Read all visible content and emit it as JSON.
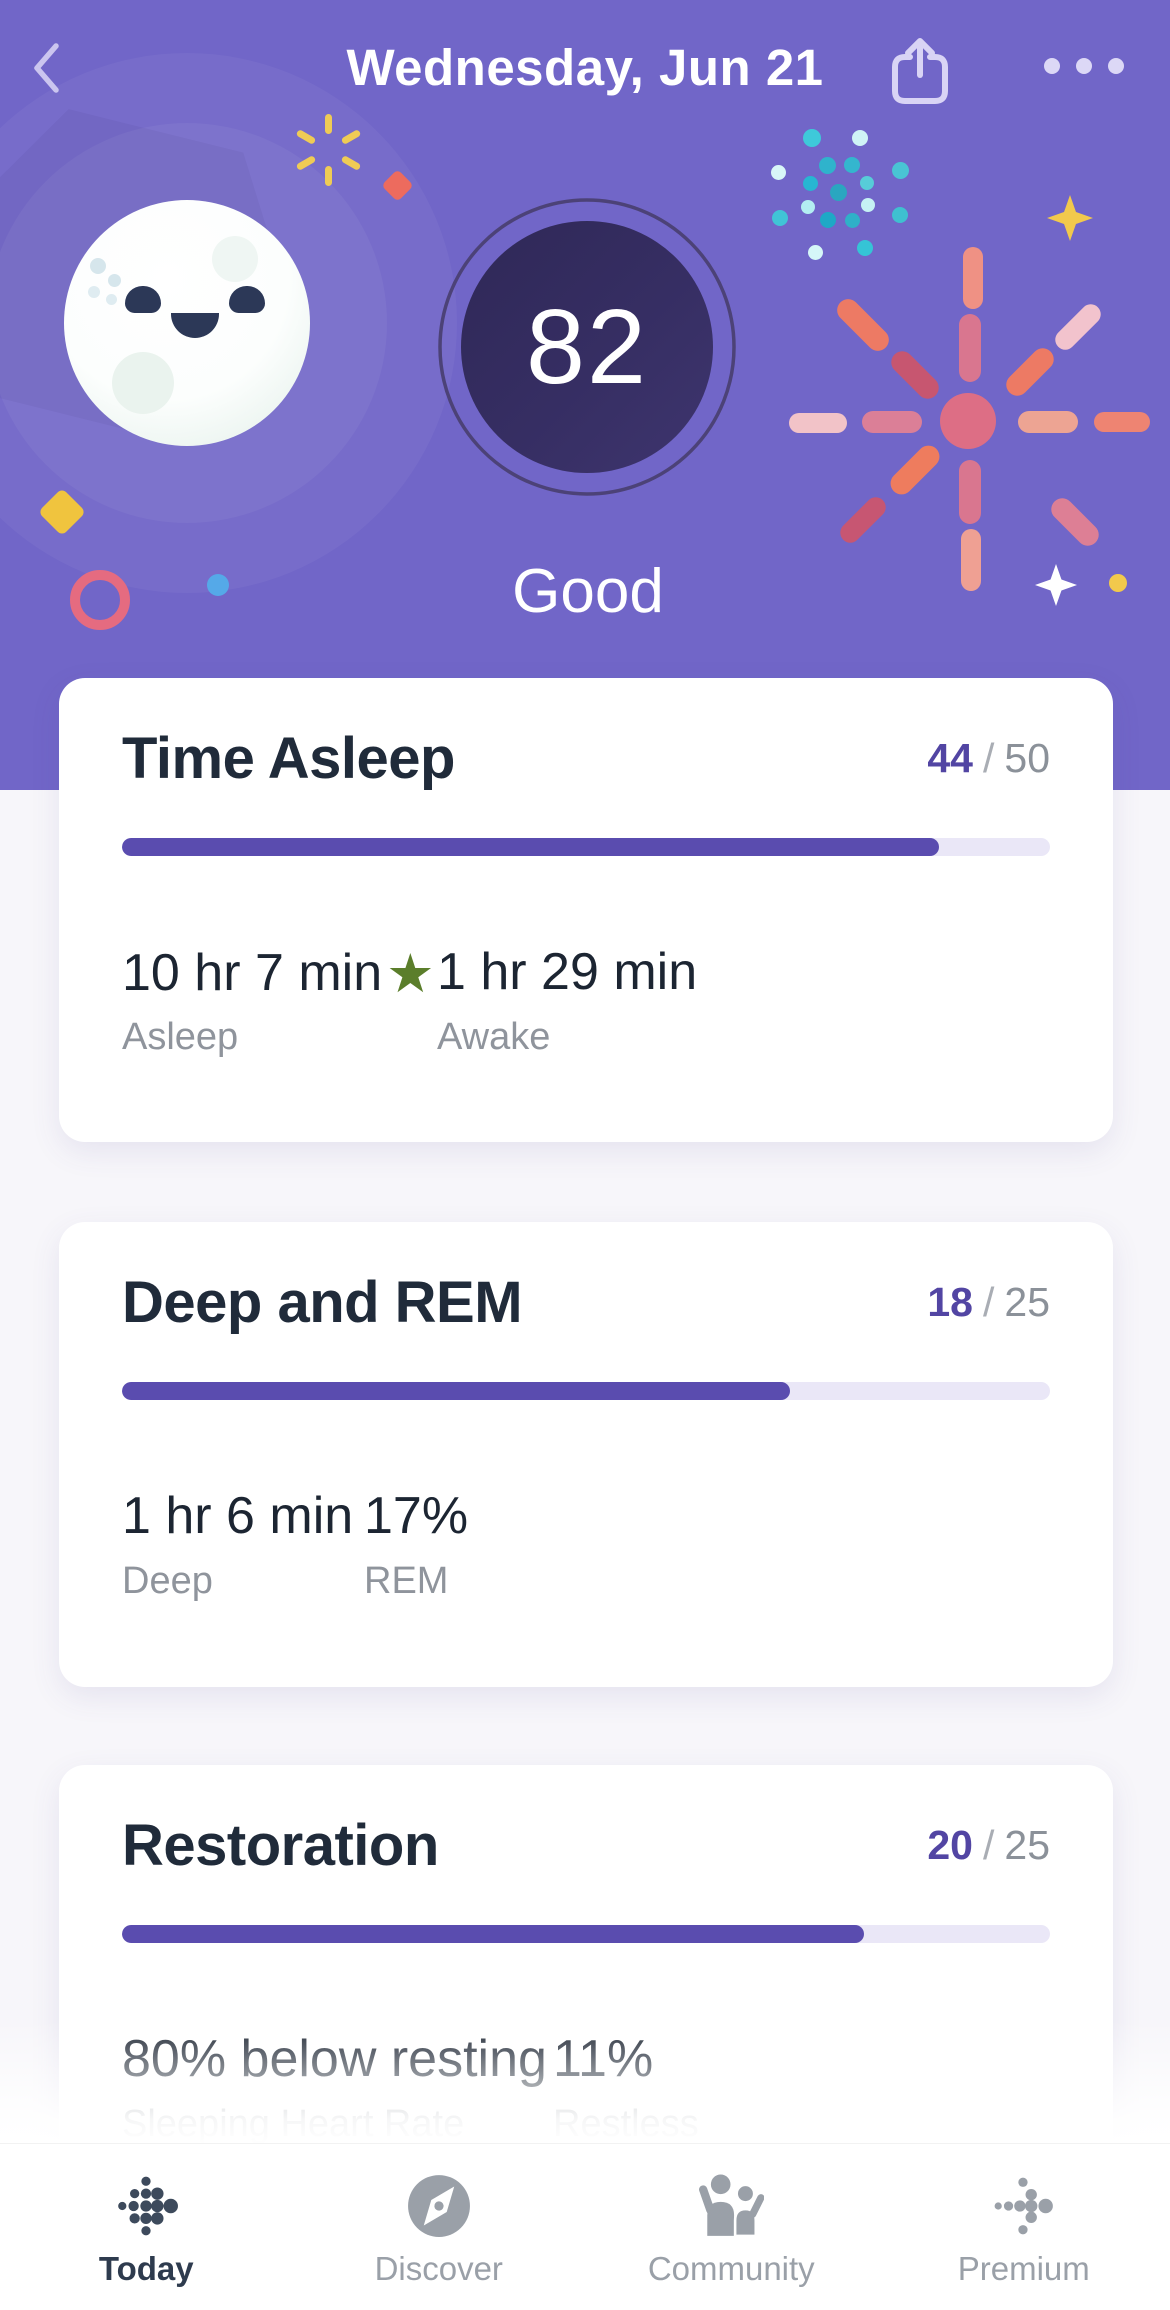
{
  "header": {
    "title": "Wednesday, Jun 21",
    "back_icon": "chevron-left-icon",
    "share_icon": "share-icon",
    "more_icon": "ellipsis-icon"
  },
  "hero": {
    "score": "82",
    "rating": "Good",
    "ring_pct": 82
  },
  "score_separator": "/",
  "star_glyph": "★",
  "cards": [
    {
      "title": "Time Asleep",
      "points": "44",
      "total": "50",
      "progress_pct": 88,
      "stats": [
        {
          "value": "10 hr 7 min",
          "label": "Asleep",
          "starred": true
        },
        {
          "value": "1 hr 29 min",
          "label": "Awake",
          "starred": false
        }
      ]
    },
    {
      "title": "Deep and REM",
      "points": "18",
      "total": "25",
      "progress_pct": 72,
      "stats": [
        {
          "value": "1 hr 6 min",
          "label": "Deep",
          "starred": false
        },
        {
          "value": "17%",
          "label": "REM",
          "starred": false
        }
      ]
    },
    {
      "title": "Restoration",
      "points": "20",
      "total": "25",
      "progress_pct": 80,
      "stats": [
        {
          "value": "80% below resting",
          "label": "Sleeping Heart Rate",
          "starred": false
        },
        {
          "value": "11%",
          "label": "Restless",
          "starred": false
        }
      ]
    }
  ],
  "tabbar": {
    "items": [
      {
        "label": "Today",
        "icon": "fitbit-logo-icon",
        "active": true
      },
      {
        "label": "Discover",
        "icon": "compass-icon",
        "active": false
      },
      {
        "label": "Community",
        "icon": "people-icon",
        "active": false
      },
      {
        "label": "Premium",
        "icon": "dots-arrow-icon",
        "active": false
      }
    ]
  },
  "colors": {
    "hero_background": "#7166c8",
    "ring_green": "#a6cb68",
    "score_circle": "#332b5e",
    "accent_purple": "#5a4caf",
    "points_purple": "#5245a3",
    "star_green": "#5b7e2b",
    "active_tab": "#2e3b4e",
    "inactive_tab": "#9aa0a8"
  }
}
